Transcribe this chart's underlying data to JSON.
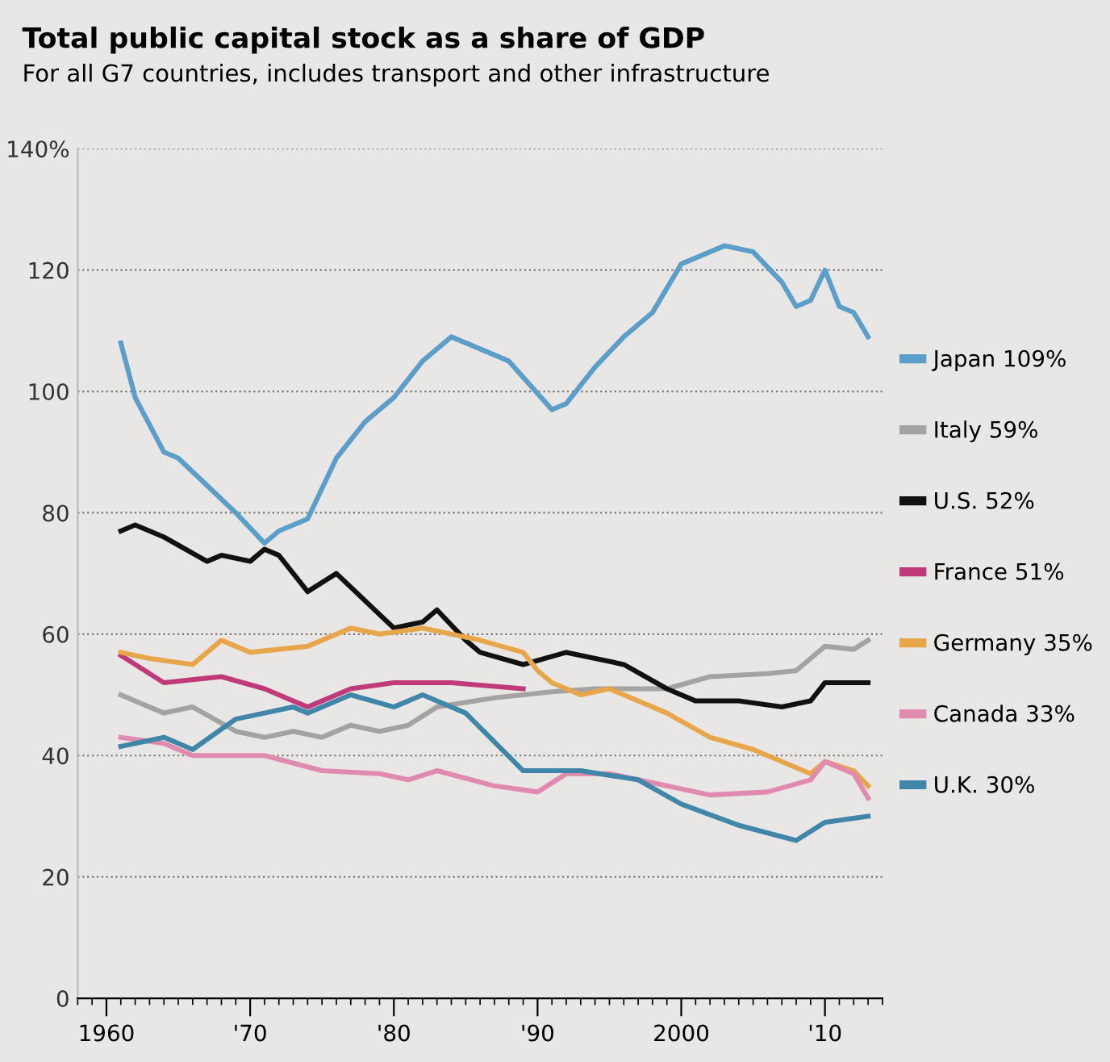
{
  "chart_data": {
    "type": "line",
    "title": "Total public capital stock as a share of GDP",
    "subtitle": "For all G7 countries, includes transport and other infrastructure",
    "xlim": [
      1958,
      2014
    ],
    "xticks": [
      1960,
      {
        "value": 1970,
        "label": "'70"
      },
      {
        "value": 1980,
        "label": "'80"
      },
      {
        "value": 1990,
        "label": "'90"
      },
      2000,
      {
        "value": 2010,
        "label": "'10"
      }
    ],
    "ylim": [
      0,
      140
    ],
    "yticks": [
      0,
      20,
      40,
      60,
      80,
      100,
      120,
      {
        "value": 140,
        "label": "140%"
      }
    ],
    "grid": "y",
    "legend": "right",
    "marker": "none",
    "line_style": "solid",
    "series": [
      {
        "name": "Japan 109%",
        "color": "#5b9ec9",
        "x": [
          1961,
          1962,
          1964,
          1965,
          1969,
          1971,
          1972,
          1974,
          1976,
          1978,
          1980,
          1982,
          1984,
          1986,
          1988,
          1991,
          1992,
          1994,
          1996,
          1998,
          2000,
          2002,
          2003,
          2005,
          2007,
          2008,
          2009,
          2010,
          2011,
          2012,
          2013
        ],
        "values": [
          108,
          99,
          90,
          89,
          80,
          75,
          77,
          79,
          89,
          95,
          99,
          105,
          109,
          107,
          105,
          97,
          98,
          104,
          109,
          113,
          121,
          123,
          124,
          123,
          118,
          114,
          115,
          120,
          114,
          113,
          109
        ]
      },
      {
        "name": "Italy 59%",
        "color": "#a3a3a3",
        "x": [
          1961,
          1964,
          1966,
          1969,
          1971,
          1973,
          1975,
          1977,
          1979,
          1981,
          1983,
          1987,
          1991,
          1994,
          1999,
          2002,
          2006,
          2008,
          2010,
          2012,
          2013
        ],
        "values": [
          50,
          47,
          48,
          44,
          43,
          44,
          43,
          45,
          44,
          45,
          48,
          49.5,
          50.5,
          51,
          51,
          53,
          53.5,
          54,
          58,
          57.5,
          59
        ]
      },
      {
        "name": "U.S. 52%",
        "color": "#111111",
        "x": [
          1961,
          1962,
          1964,
          1967,
          1968,
          1970,
          1971,
          1972,
          1974,
          1976,
          1980,
          1982,
          1983,
          1985,
          1986,
          1989,
          1992,
          1996,
          1999,
          2001,
          2004,
          2007,
          2009,
          2010,
          2013
        ],
        "values": [
          77,
          78,
          76,
          72,
          73,
          72,
          74,
          73,
          67,
          70,
          61,
          62,
          64,
          59,
          57,
          55,
          57,
          55,
          51,
          49,
          49,
          48,
          49,
          52,
          52
        ]
      },
      {
        "name": "France 51%",
        "color": "#c03a7a",
        "x": [
          1961,
          1964,
          1968,
          1971,
          1974,
          1977,
          1980,
          1984,
          1989
        ],
        "values": [
          56.5,
          52,
          53,
          51,
          48,
          51,
          52,
          52,
          51
        ]
      },
      {
        "name": "Germany 35%",
        "color": "#e8a64a",
        "x": [
          1961,
          1963,
          1966,
          1968,
          1970,
          1974,
          1977,
          1979,
          1982,
          1986,
          1989,
          1990,
          1991,
          1993,
          1995,
          1999,
          2002,
          2005,
          2009,
          2010,
          2012,
          2013
        ],
        "values": [
          57,
          56,
          55,
          59,
          57,
          58,
          61,
          60,
          61,
          59,
          57,
          54,
          52,
          50,
          51,
          47,
          43,
          41,
          37,
          39,
          37.5,
          35
        ]
      },
      {
        "name": "Canada 33%",
        "color": "#e08ab0",
        "x": [
          1961,
          1964,
          1966,
          1971,
          1975,
          1979,
          1981,
          1983,
          1987,
          1990,
          1992,
          1995,
          1999,
          2002,
          2006,
          2009,
          2010,
          2012,
          2013
        ],
        "values": [
          43,
          42,
          40,
          40,
          37.5,
          37,
          36,
          37.5,
          35,
          34,
          37,
          37,
          35,
          33.5,
          34,
          36,
          39,
          37,
          33
        ]
      },
      {
        "name": "U.K. 30%",
        "color": "#3f86a8",
        "x": [
          1961,
          1964,
          1966,
          1969,
          1973,
          1974,
          1977,
          1980,
          1982,
          1985,
          1989,
          1993,
          1997,
          2000,
          2004,
          2008,
          2010,
          2013
        ],
        "values": [
          41.5,
          43,
          41,
          46,
          48,
          47,
          50,
          48,
          50,
          47,
          37.5,
          37.5,
          36,
          32,
          28.5,
          26,
          29,
          30
        ]
      }
    ]
  }
}
